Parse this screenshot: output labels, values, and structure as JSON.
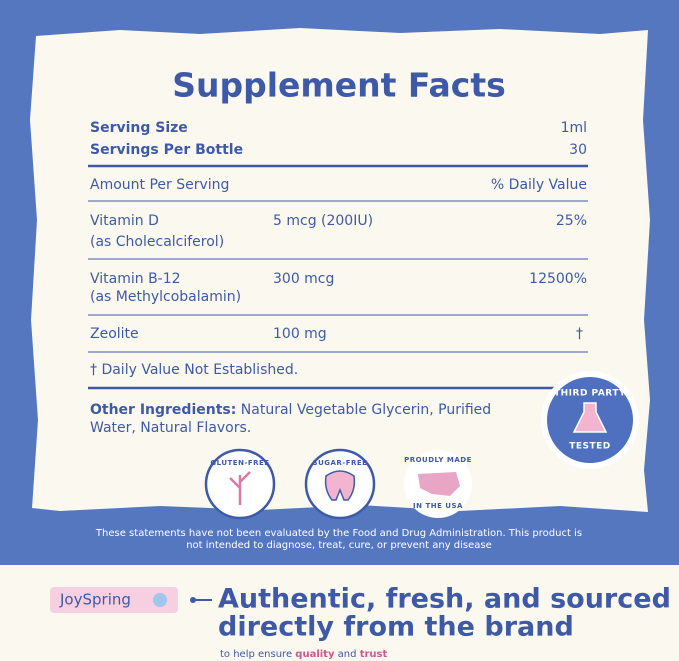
{
  "header": {
    "title": "Supplement Facts"
  },
  "serving": [
    [
      "Serving Size",
      "1ml"
    ],
    [
      "Servings Per Bottle",
      30
    ]
  ],
  "amount_header": [
    "Amount Per Serving",
    "% Daily Value"
  ],
  "nutrients": [
    {
      "name": "Vitamin D",
      "source": "(as Cholecalciferol)",
      "amount": "5 mcg (200IU)",
      "daily_value": "25%"
    },
    {
      "name": "Vitamin B-12",
      "source": "(as Methylcobalamin)",
      "amount": "300 mcg",
      "daily_value": "12500%"
    },
    {
      "name": "Zeolite",
      "amount": "100 mg",
      "daily_value": "†"
    }
  ],
  "footnote": "† Daily Value Not Established.",
  "other_ingredients": {
    "label": "Other Ingredients:",
    "lines": [
      "Natural Vegetable Glycerin, Purified",
      "Water, Natural Flavors."
    ]
  },
  "badges": {
    "gluten": "GLUTEN-FREE",
    "sugar": "SUGAR-FREE",
    "usa": [
      "PROUDLY MADE",
      "IN THE USA"
    ],
    "tested": [
      "THIRD PARTY",
      "TESTED"
    ]
  },
  "disclaimer": [
    "These statements have not been evaluated by the Food and Drug Administration. This product is",
    "not intended to diagnose, treat, cure, or prevent any disease"
  ],
  "brand": "JoySpring",
  "headline": [
    "Authentic, fresh, and sourced",
    "directly from the brand"
  ],
  "tagline": [
    "to help ensure",
    "quality",
    "and",
    "trust"
  ]
}
